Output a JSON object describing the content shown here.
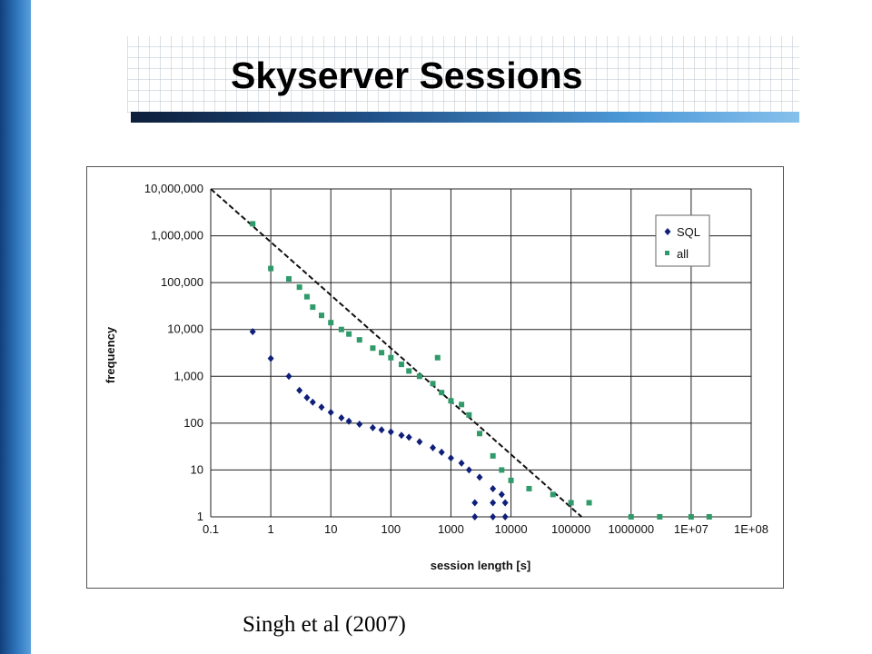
{
  "slide": {
    "title": "Skyserver Sessions",
    "caption": "Singh et al (2007)"
  },
  "colors": {
    "sql": "#0f1f7a",
    "all": "#2f9a6a",
    "fit": "#111111",
    "grid": "#222222"
  },
  "chart_data": {
    "type": "scatter",
    "title": "",
    "xlabel": "session length [s]",
    "ylabel": "frequency",
    "x_scale": "log",
    "y_scale": "log",
    "xlim": [
      0.1,
      100000000
    ],
    "ylim": [
      1,
      10000000
    ],
    "grid": true,
    "legend_position": "top-right",
    "x_tick_labels": [
      "0.1",
      "1",
      "10",
      "100",
      "1000",
      "10000",
      "100000",
      "1000000",
      "1E+07",
      "1E+08"
    ],
    "y_tick_labels": [
      "1",
      "10",
      "100",
      "1,000",
      "10,000",
      "100,000",
      "1,000,000",
      "10,000,000"
    ],
    "series": [
      {
        "name": "SQL",
        "marker": "diamond",
        "points": [
          [
            0.5,
            9000
          ],
          [
            1,
            2400
          ],
          [
            2,
            1000
          ],
          [
            3,
            500
          ],
          [
            4,
            350
          ],
          [
            5,
            280
          ],
          [
            7,
            220
          ],
          [
            10,
            170
          ],
          [
            15,
            130
          ],
          [
            20,
            110
          ],
          [
            30,
            95
          ],
          [
            50,
            80
          ],
          [
            70,
            72
          ],
          [
            100,
            65
          ],
          [
            150,
            55
          ],
          [
            200,
            50
          ],
          [
            300,
            40
          ],
          [
            500,
            30
          ],
          [
            700,
            24
          ],
          [
            1000,
            18
          ],
          [
            1500,
            14
          ],
          [
            2000,
            10
          ],
          [
            3000,
            7
          ],
          [
            5000,
            4
          ],
          [
            7000,
            3
          ],
          [
            2500,
            2
          ],
          [
            5000,
            2
          ],
          [
            8000,
            2
          ],
          [
            2500,
            1
          ],
          [
            5000,
            1
          ],
          [
            8000,
            1
          ]
        ]
      },
      {
        "name": "all",
        "marker": "square",
        "points": [
          [
            0.5,
            1800000
          ],
          [
            1,
            200000
          ],
          [
            2,
            120000
          ],
          [
            3,
            80000
          ],
          [
            4,
            50000
          ],
          [
            5,
            30000
          ],
          [
            7,
            20000
          ],
          [
            10,
            14000
          ],
          [
            15,
            10000
          ],
          [
            20,
            8000
          ],
          [
            30,
            6000
          ],
          [
            50,
            4000
          ],
          [
            70,
            3200
          ],
          [
            100,
            2500
          ],
          [
            150,
            1800
          ],
          [
            200,
            1300
          ],
          [
            300,
            1000
          ],
          [
            500,
            700
          ],
          [
            600,
            2500
          ],
          [
            700,
            450
          ],
          [
            1000,
            300
          ],
          [
            1500,
            250
          ],
          [
            2000,
            150
          ],
          [
            3000,
            60
          ],
          [
            5000,
            20
          ],
          [
            7000,
            10
          ],
          [
            10000,
            6
          ],
          [
            20000,
            4
          ],
          [
            50000,
            3
          ],
          [
            100000,
            2
          ],
          [
            200000,
            2
          ],
          [
            1000000,
            1
          ],
          [
            3000000,
            1
          ],
          [
            10000000,
            1
          ],
          [
            20000000,
            1
          ]
        ]
      }
    ],
    "fit_line": {
      "from": [
        0.1,
        10000000
      ],
      "to": [
        150000,
        1
      ]
    }
  }
}
